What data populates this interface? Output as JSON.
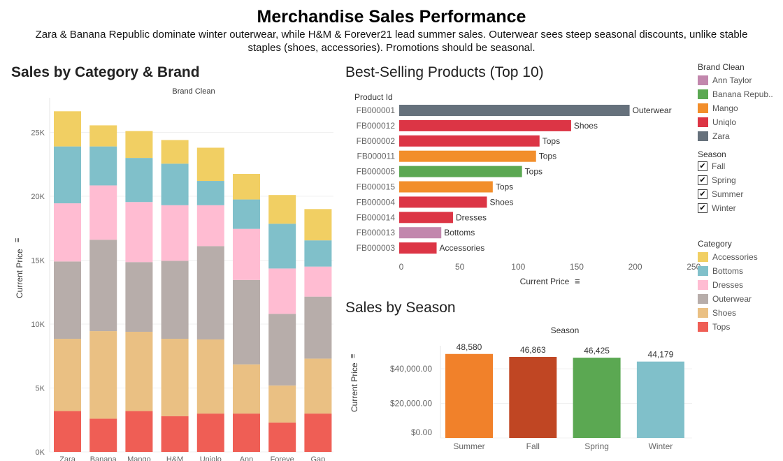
{
  "header": {
    "title": "Merchandise Sales Performance",
    "subtitle": "Zara & Banana Republic dominate winter outerwear, while H&M & Forever21 lead summer sales. Outerwear sees steep seasonal discounts, unlike stable staples (shoes, accessories). Promotions should be seasonal."
  },
  "sections": {
    "category_brand": "Sales by Category & Brand",
    "top10": "Best-Selling Products (Top 10)",
    "season": "Sales by Season"
  },
  "legends": {
    "brand": {
      "title": "Brand Clean",
      "items": [
        {
          "label": "Ann Taylor",
          "color": "#c287ad"
        },
        {
          "label": "Banana Repub..",
          "color": "#5ba852"
        },
        {
          "label": "Mango",
          "color": "#f28e2b"
        },
        {
          "label": "Uniqlo",
          "color": "#dc3545"
        },
        {
          "label": "Zara",
          "color": "#66717c"
        }
      ]
    },
    "season": {
      "title": "Season",
      "items": [
        {
          "label": "Fall",
          "checked": true
        },
        {
          "label": "Spring",
          "checked": true
        },
        {
          "label": "Summer",
          "checked": true
        },
        {
          "label": "Winter",
          "checked": true
        }
      ]
    },
    "category": {
      "title": "Category",
      "items": [
        {
          "label": "Accessories",
          "color": "#f1cf63"
        },
        {
          "label": "Bottoms",
          "color": "#80c0ca"
        },
        {
          "label": "Dresses",
          "color": "#ffbcd2"
        },
        {
          "label": "Outerwear",
          "color": "#b7adaa"
        },
        {
          "label": "Shoes",
          "color": "#eac083"
        },
        {
          "label": "Tops",
          "color": "#ef5e55"
        }
      ]
    }
  },
  "chart_data": [
    {
      "type": "bar",
      "stacked": true,
      "title": "Sales by Category & Brand",
      "xlabel": "Brand Clean",
      "ylabel": "Current Price",
      "ylim": [
        0,
        27000
      ],
      "yticks": [
        "0K",
        "5K",
        "10K",
        "15K",
        "20K",
        "25K"
      ],
      "categories": [
        "Zara",
        "Banana",
        "Mango",
        "H&M",
        "Uniqlo",
        "Ann",
        "Foreve",
        "Gap"
      ],
      "series": [
        {
          "name": "Tops",
          "color": "#ef5e55",
          "values": [
            3200,
            2600,
            3200,
            2800,
            3000,
            3000,
            2300,
            3000
          ]
        },
        {
          "name": "Shoes",
          "color": "#eac083",
          "values": [
            5650,
            6850,
            6200,
            6050,
            5800,
            3850,
            2900,
            4300
          ]
        },
        {
          "name": "Outerwear",
          "color": "#b7adaa",
          "values": [
            6050,
            7150,
            5450,
            6100,
            7300,
            6600,
            5600,
            4850
          ]
        },
        {
          "name": "Dresses",
          "color": "#ffbcd2",
          "values": [
            4550,
            4250,
            4700,
            4350,
            3200,
            4000,
            3550,
            2350
          ]
        },
        {
          "name": "Bottoms",
          "color": "#80c0ca",
          "values": [
            4450,
            3050,
            3450,
            3250,
            1900,
            2300,
            3500,
            2050
          ]
        },
        {
          "name": "Accessories",
          "color": "#f1cf63",
          "values": [
            2750,
            1650,
            2100,
            1850,
            2600,
            2000,
            2250,
            2450
          ]
        }
      ]
    },
    {
      "type": "bar",
      "orientation": "horizontal",
      "title": "Best-Selling Products (Top 10)",
      "ylabel": "Product Id",
      "xlabel": "Current Price",
      "xlim": [
        0,
        260
      ],
      "xticks": [
        0,
        50,
        100,
        150,
        200,
        250
      ],
      "categories": [
        "FB000001",
        "FB000012",
        "FB000002",
        "FB000011",
        "FB000005",
        "FB000015",
        "FB000004",
        "FB000014",
        "FB000013",
        "FB000003"
      ],
      "values": [
        197,
        147,
        120,
        117,
        105,
        80,
        75,
        46,
        36,
        32
      ],
      "labels": [
        "Outerwear",
        "Shoes",
        "Tops",
        "Tops",
        "Tops",
        "Tops",
        "Shoes",
        "Dresses",
        "Bottoms",
        "Accessories"
      ],
      "colors": [
        "#66717c",
        "#dc3545",
        "#dc3545",
        "#f28e2b",
        "#5ba852",
        "#f28e2b",
        "#dc3545",
        "#dc3545",
        "#c287ad",
        "#dc3545"
      ]
    },
    {
      "type": "bar",
      "title": "Sales by Season",
      "xlabel": "Season",
      "ylabel": "Current Price",
      "ylim": [
        0,
        55000
      ],
      "yticks": [
        "$0.00",
        "$20,000.00",
        "$40,000.00"
      ],
      "categories": [
        "Summer",
        "Fall",
        "Spring",
        "Winter"
      ],
      "values": [
        48580,
        46863,
        46425,
        44179
      ],
      "value_labels": [
        "48,580",
        "46,863",
        "46,425",
        "44,179"
      ],
      "colors": [
        "#f1812a",
        "#c04623",
        "#5ba852",
        "#80c0ca"
      ]
    }
  ]
}
